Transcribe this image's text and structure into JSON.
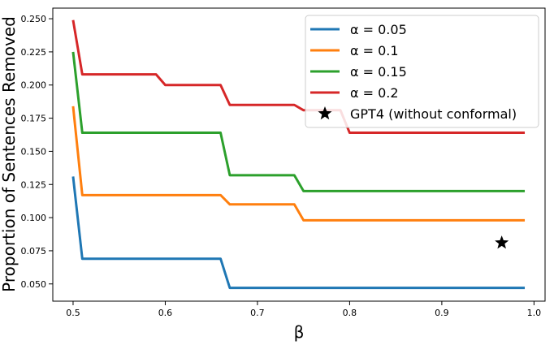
{
  "chart_data": {
    "type": "line",
    "xlabel": "β",
    "ylabel": "Proportion of Sentences Removed",
    "xlim": [
      0.478,
      1.012
    ],
    "ylim": [
      0.037,
      0.258
    ],
    "xticks": [
      0.5,
      0.6,
      0.7,
      0.8,
      0.9,
      1.0
    ],
    "xtick_labels": [
      "0.5",
      "0.6",
      "0.7",
      "0.8",
      "0.9",
      "1.0"
    ],
    "yticks": [
      0.05,
      0.075,
      0.1,
      0.125,
      0.15,
      0.175,
      0.2,
      0.225,
      0.25
    ],
    "ytick_labels": [
      "0.050",
      "0.075",
      "0.100",
      "0.125",
      "0.150",
      "0.175",
      "0.200",
      "0.225",
      "0.250"
    ],
    "grid": false,
    "legend_position": "top-right",
    "series": [
      {
        "name": "α = 0.05",
        "color": "#1f77b4",
        "x": [
          0.5,
          0.51,
          0.66,
          0.67,
          0.99
        ],
        "y": [
          0.131,
          0.069,
          0.069,
          0.047,
          0.047
        ]
      },
      {
        "name": "α = 0.1",
        "color": "#ff7f0e",
        "x": [
          0.5,
          0.51,
          0.66,
          0.67,
          0.74,
          0.75,
          0.99
        ],
        "y": [
          0.184,
          0.117,
          0.117,
          0.11,
          0.11,
          0.098,
          0.098
        ]
      },
      {
        "name": "α = 0.15",
        "color": "#2ca02c",
        "x": [
          0.5,
          0.51,
          0.66,
          0.67,
          0.74,
          0.75,
          0.99
        ],
        "y": [
          0.225,
          0.164,
          0.164,
          0.132,
          0.132,
          0.12,
          0.12
        ]
      },
      {
        "name": "α = 0.2",
        "color": "#d62728",
        "x": [
          0.5,
          0.51,
          0.59,
          0.6,
          0.66,
          0.67,
          0.74,
          0.75,
          0.79,
          0.8,
          0.99
        ],
        "y": [
          0.249,
          0.208,
          0.208,
          0.2,
          0.2,
          0.185,
          0.185,
          0.181,
          0.181,
          0.164,
          0.164
        ]
      }
    ],
    "markers": [
      {
        "name": "GPT4 (without conformal)",
        "symbol": "star",
        "color": "#000000",
        "x": 0.965,
        "y": 0.081
      }
    ]
  }
}
